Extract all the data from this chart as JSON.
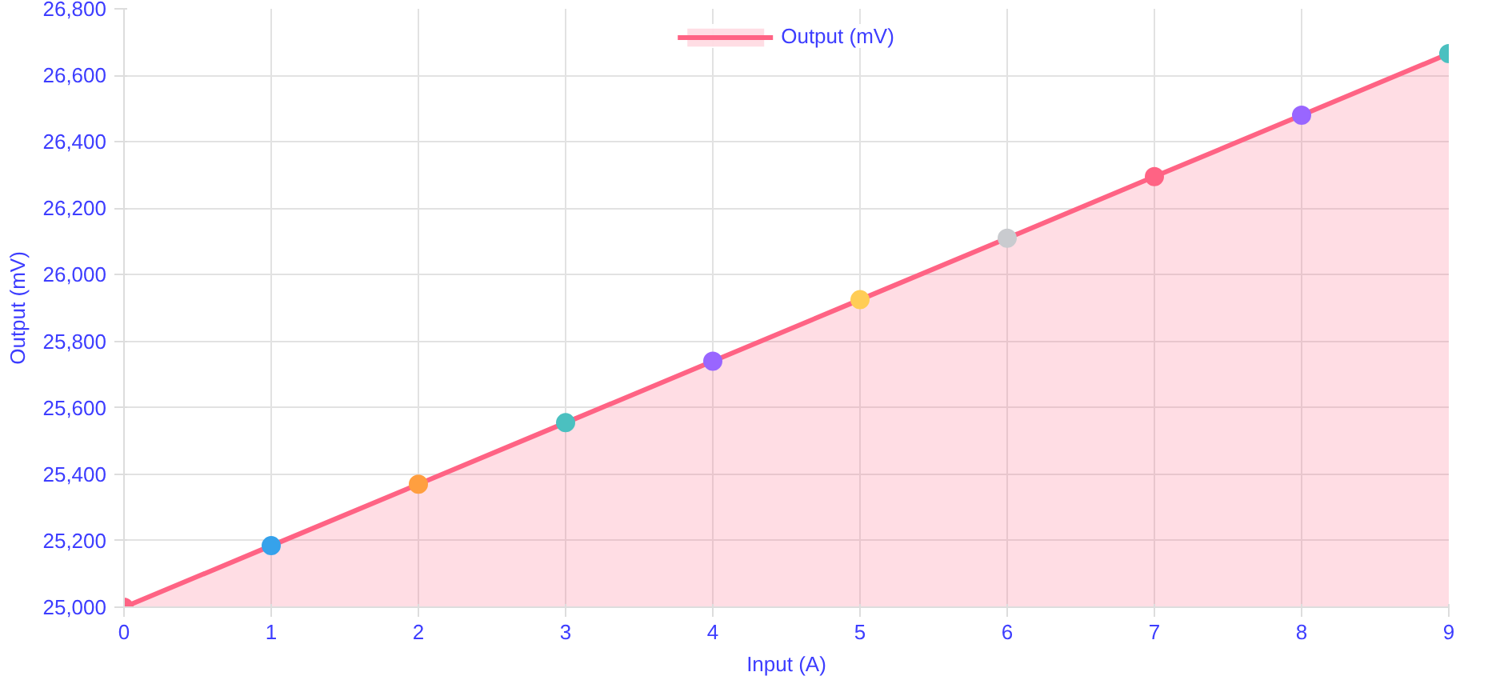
{
  "chart_data": {
    "type": "area",
    "xlabel": "Input (A)",
    "ylabel": "Output (mV)",
    "x": [
      0,
      1,
      2,
      3,
      4,
      5,
      6,
      7,
      8,
      9
    ],
    "series": [
      {
        "name": "Output (mV)",
        "color": "#ff6384",
        "values": [
          25000,
          25185,
          25370,
          25555,
          25740,
          25925,
          26110,
          26295,
          26480,
          26665
        ],
        "colors": [
          "#ff6384",
          "#36a2eb",
          "#ff9f40",
          "#4bc0c0",
          "#9966ff",
          "#ffcd56",
          "#c9cbcf",
          "#ff6384",
          "#9966ff",
          "#4bc0c0"
        ]
      }
    ],
    "xlim": [
      0,
      9
    ],
    "xticks": [
      0,
      1,
      2,
      3,
      4,
      5,
      6,
      7,
      8,
      9
    ],
    "ylim": [
      25000,
      26800
    ],
    "yticks": [
      {
        "value": 25000,
        "label": "25,000"
      },
      {
        "value": 25200,
        "label": "25,200"
      },
      {
        "value": 25400,
        "label": "25,400"
      },
      {
        "value": 25600,
        "label": "25,600"
      },
      {
        "value": 25800,
        "label": "25,800"
      },
      {
        "value": 26000,
        "label": "26,000"
      },
      {
        "value": 26200,
        "label": "26,200"
      },
      {
        "value": 26400,
        "label": "26,400"
      },
      {
        "value": 26600,
        "label": "26,600"
      },
      {
        "value": 26800,
        "label": "26,800"
      }
    ],
    "grid": true,
    "legend": "top",
    "marker": "circle",
    "line_style": "solid"
  }
}
